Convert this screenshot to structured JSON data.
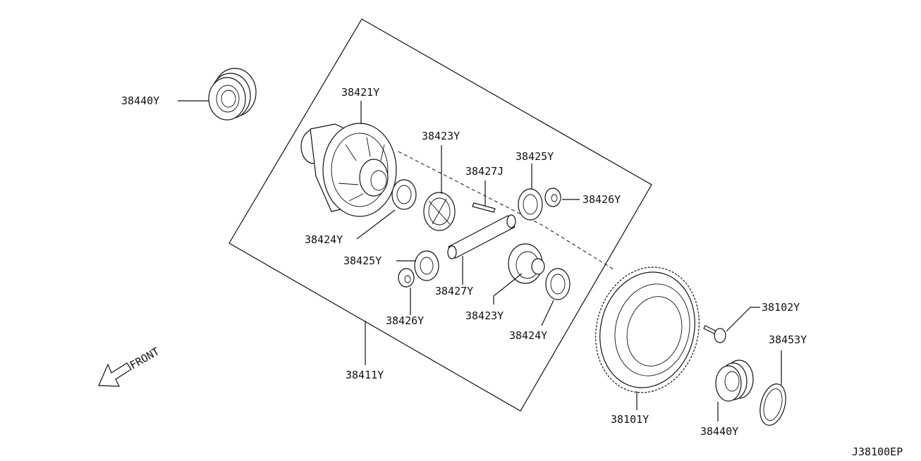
{
  "diagram": {
    "drawing_code": "J38100EP",
    "front_label": "FRONT",
    "parts": {
      "bearing_left": "38440Y",
      "diff_case": "38421Y",
      "pinion_gear_top": "38423Y",
      "side_gear_top": "38425Y",
      "lock_pin": "38427J",
      "thrust_washer_right_top": "38426Y",
      "thrust_washer_left": "38424Y",
      "side_gear_bottom": "38425Y",
      "pinion_shaft": "38427Y",
      "pinion_gear_bottom": "38423Y",
      "thrust_washer_bottom_left": "38426Y",
      "thrust_washer_bottom": "38424Y",
      "diff_assembly": "38411Y",
      "ring_gear_bolt": "38102Y",
      "ring_gear": "38101Y",
      "bearing_right": "38440Y",
      "shim": "38453Y"
    }
  }
}
